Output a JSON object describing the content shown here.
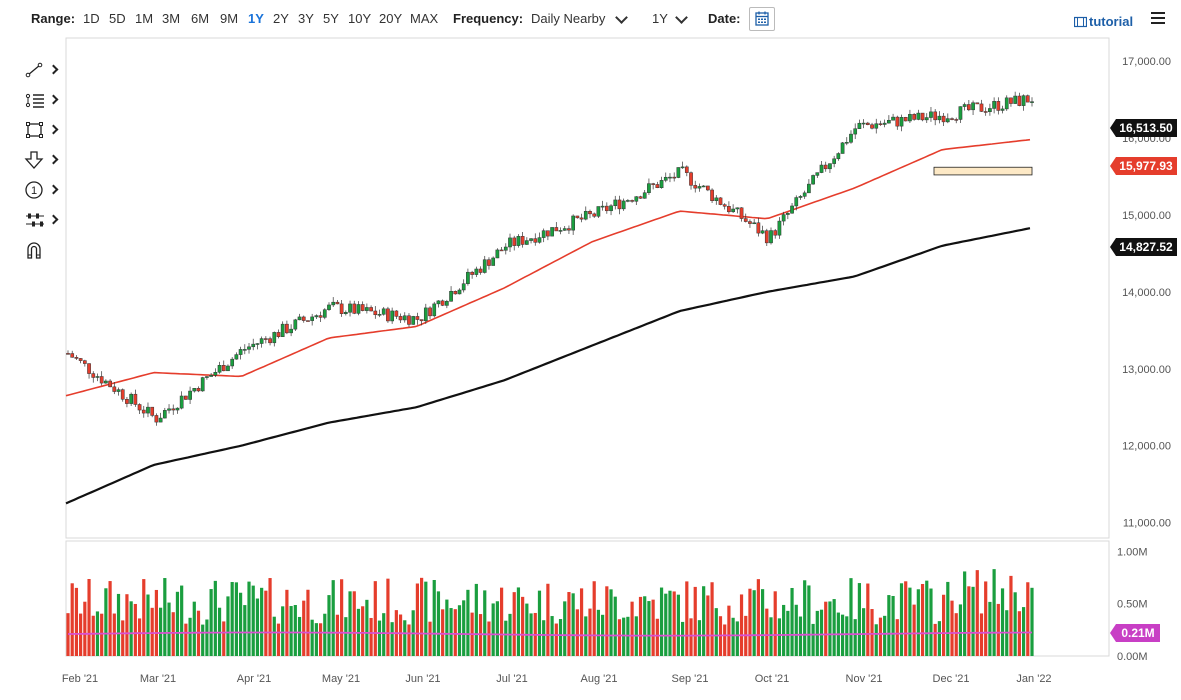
{
  "toolbar": {
    "range_label": "Range:",
    "ranges": [
      "1D",
      "5D",
      "1M",
      "3M",
      "6M",
      "9M",
      "1Y",
      "2Y",
      "3Y",
      "5Y",
      "10Y",
      "20Y",
      "MAX"
    ],
    "active_range": "1Y",
    "frequency_label": "Frequency:",
    "frequency_value": "Daily Nearby",
    "period_value": "1Y",
    "date_label": "Date:",
    "tutorial_label": "tutorial",
    "icons": [
      "calendar-icon",
      "film-icon",
      "hamburger-menu-icon"
    ]
  },
  "drawing_tools": [
    {
      "name": "line-draw-icon"
    },
    {
      "name": "fibonacci-icon"
    },
    {
      "name": "rectangle-icon"
    },
    {
      "name": "arrow-down-icon"
    },
    {
      "name": "number-label-icon",
      "text": "1"
    },
    {
      "name": "measure-icon"
    },
    {
      "name": "magnet-icon"
    }
  ],
  "price_labels": {
    "last": "16,513.50",
    "ma50": "15,977.93",
    "ma200": "14,827.52",
    "volume": "0.21M"
  },
  "colors": {
    "up": "#1a9e3f",
    "down": "#e53d2c",
    "ma50": "#e53d2c",
    "ma200": "#111111",
    "volume_ma": "#d94fd1",
    "badge_dark": "#111111",
    "badge_red": "#e53d2c",
    "badge_magenta": "#c83fc5",
    "highlight_box": "#fde9c6"
  },
  "chart_data": {
    "type": "candlestick",
    "price_axis": {
      "ticks": [
        "17,000.00",
        "16,000.00",
        "15,000.00",
        "14,000.00",
        "13,000.00",
        "12,000.00",
        "11,000.00"
      ],
      "ylim": [
        10800,
        17300
      ]
    },
    "volume_axis": {
      "ticks": [
        "1.00M",
        "0.50M",
        "0.00M"
      ],
      "ylim": [
        0,
        1.1
      ]
    },
    "x_ticks": [
      "Feb '21",
      "Mar '21",
      "Apr '21",
      "May '21",
      "Jun '21",
      "Jul '21",
      "Aug '21",
      "Sep '21",
      "Oct '21",
      "Nov '21",
      "Dec '21",
      "Jan '22"
    ],
    "closes": [
      {
        "date": "Feb '21",
        "value": 13200
      },
      {
        "date": "Mar '21",
        "value": 12350
      },
      {
        "date": "Apr '21",
        "value": 13250
      },
      {
        "date": "May '21",
        "value": 13800
      },
      {
        "date": "Jun '21",
        "value": 13650
      },
      {
        "date": "Jul '21",
        "value": 14600
      },
      {
        "date": "Aug '21",
        "value": 15000
      },
      {
        "date": "Sep '21",
        "value": 15550
      },
      {
        "date": "Oct '21",
        "value": 14700
      },
      {
        "date": "Nov '21",
        "value": 16150
      },
      {
        "date": "Dec '21",
        "value": 16300
      },
      {
        "date": "Dec 30 '21",
        "value": 16513.5
      }
    ],
    "ma50": [
      {
        "date": "Feb '21",
        "value": 12650
      },
      {
        "date": "Mar '21",
        "value": 12950
      },
      {
        "date": "Apr '21",
        "value": 12900
      },
      {
        "date": "May '21",
        "value": 13400
      },
      {
        "date": "Jun '21",
        "value": 13550
      },
      {
        "date": "Jul '21",
        "value": 14050
      },
      {
        "date": "Aug '21",
        "value": 14650
      },
      {
        "date": "Sep '21",
        "value": 15050
      },
      {
        "date": "Oct '21",
        "value": 14950
      },
      {
        "date": "Nov '21",
        "value": 15350
      },
      {
        "date": "Dec '21",
        "value": 15850
      },
      {
        "date": "Dec 30 '21",
        "value": 15977.93
      }
    ],
    "ma200": [
      {
        "date": "Feb '21",
        "value": 11250
      },
      {
        "date": "Mar '21",
        "value": 11750
      },
      {
        "date": "Apr '21",
        "value": 12000
      },
      {
        "date": "May '21",
        "value": 12300
      },
      {
        "date": "Jun '21",
        "value": 12500
      },
      {
        "date": "Jul '21",
        "value": 12850
      },
      {
        "date": "Aug '21",
        "value": 13300
      },
      {
        "date": "Sep '21",
        "value": 13750
      },
      {
        "date": "Oct '21",
        "value": 14000
      },
      {
        "date": "Nov '21",
        "value": 14200
      },
      {
        "date": "Dec '21",
        "value": 14600
      },
      {
        "date": "Dec 30 '21",
        "value": 14827.52
      }
    ],
    "support_zone": {
      "low": 15520,
      "high": 15620
    },
    "grid": false,
    "legend": "none"
  }
}
